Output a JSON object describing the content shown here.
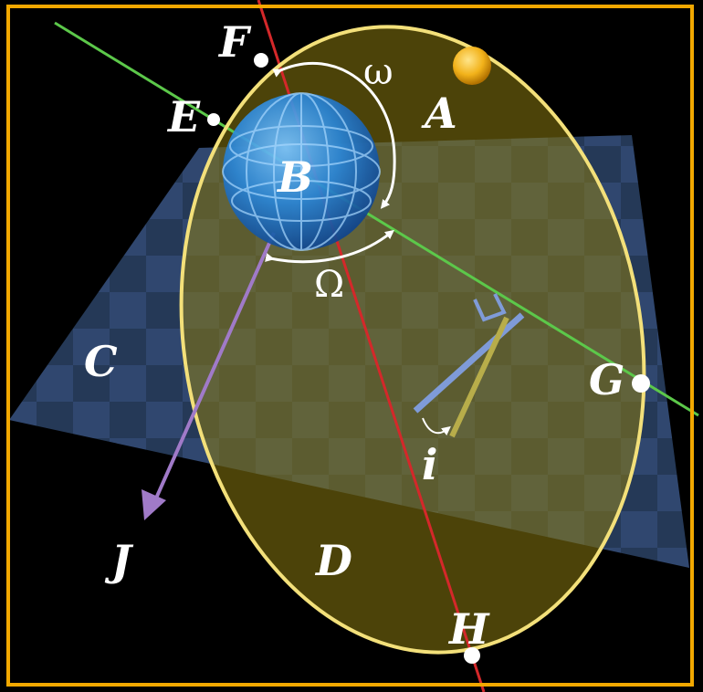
{
  "labels": {
    "A": "A",
    "B": "B",
    "C": "C",
    "D": "D",
    "E": "E",
    "F": "F",
    "G": "G",
    "H": "H",
    "J": "J",
    "omega_small": "ω",
    "omega_capital": "Ω",
    "inclination": "i"
  },
  "colors": {
    "frame": "#f2a800",
    "background": "#000000",
    "plane": "#3c5a8c",
    "orbit_fill": "#8a7a10",
    "orbit_line": "#f3e07a",
    "node_line": "#5cc84a",
    "apsis_line": "#d4282a",
    "vector": "#a07ac8",
    "globe": "#2a86d8",
    "sun": "#f2b21a",
    "incl_blue": "#7f9bd8",
    "incl_yellow": "#b8ad4a"
  }
}
